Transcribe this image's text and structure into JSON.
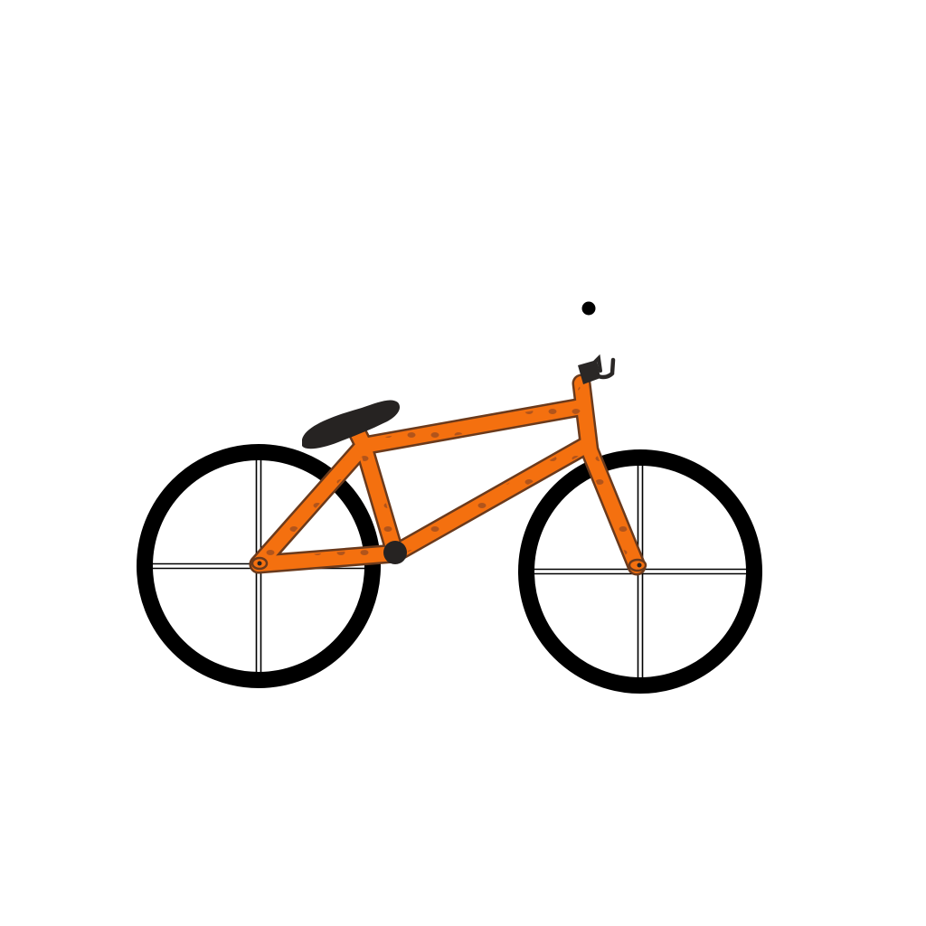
{
  "scene": {
    "subject": "bicycle",
    "background_color": "#ffffff"
  },
  "colors": {
    "frame": "#f4700f",
    "frame_outline": "#6b3a1c",
    "frame_spots": "#9a4a1e",
    "tire": "#000000",
    "spoke": "#000000",
    "saddle": "#262322",
    "handlebar": "#2a2726",
    "crank": "#262322",
    "dot": "#000000"
  },
  "parts": {
    "wheel_count": 2,
    "spokes_per_wheel": 4
  }
}
